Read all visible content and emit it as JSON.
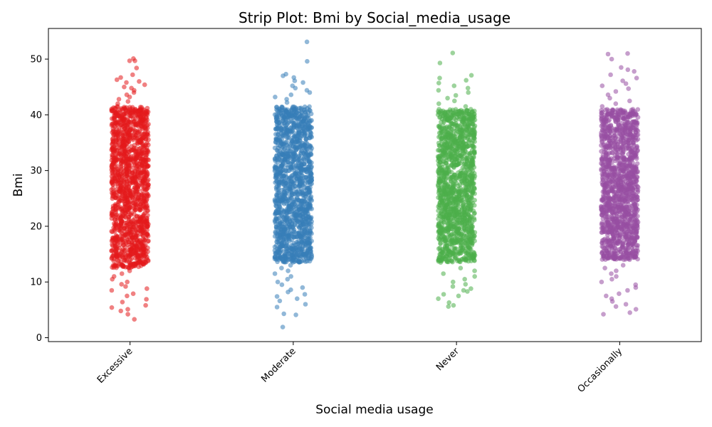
{
  "chart_data": {
    "type": "scatter",
    "subtype": "strip",
    "title": "Strip Plot: Bmi by Social_media_usage",
    "xlabel": "Social media usage",
    "ylabel": "Bmi",
    "categories": [
      "Excessive",
      "Moderate",
      "Never",
      "Occasionally"
    ],
    "colors": [
      "#e41a1c",
      "#377eb8",
      "#4daf4a",
      "#984ea3"
    ],
    "ylim": [
      -0.7,
      55.5
    ],
    "yticks": [
      0,
      10,
      20,
      30,
      40,
      50
    ],
    "grid": false,
    "legend": "none",
    "series": [
      {
        "category": "Excessive",
        "dense_range": [
          12.5,
          41.5
        ],
        "values": [
          50.1,
          49.7,
          49.7,
          48.4,
          47.2,
          46.7,
          46.3,
          46.0,
          45.8,
          45.4,
          45.0,
          44.8,
          44.4,
          44.0,
          43.6,
          43.2,
          42.8,
          42.4,
          42.0,
          41.0,
          38.0,
          35.0,
          32.0,
          29.0,
          26.0,
          23.0,
          20.0,
          17.0,
          14.0,
          12.0,
          11.5,
          11.0,
          10.5,
          10.0,
          9.6,
          9.2,
          8.8,
          8.5,
          7.9,
          7.5,
          6.9,
          6.4,
          5.8,
          5.4,
          5.1,
          4.8,
          4.2,
          3.3
        ]
      },
      {
        "category": "Moderate",
        "dense_range": [
          13.5,
          41.5
        ],
        "values": [
          53.1,
          49.6,
          47.3,
          47.0,
          46.7,
          46.1,
          45.8,
          45.2,
          44.8,
          44.4,
          44.0,
          43.6,
          43.2,
          42.8,
          42.2,
          41.0,
          38.0,
          35.0,
          32.0,
          29.0,
          26.0,
          23.0,
          20.0,
          17.0,
          14.5,
          13.0,
          12.5,
          12.0,
          11.5,
          11.0,
          10.5,
          10.0,
          9.5,
          9.0,
          8.6,
          8.2,
          7.8,
          7.4,
          7.0,
          6.6,
          6.0,
          5.5,
          4.3,
          4.1,
          1.9
        ]
      },
      {
        "category": "Never",
        "dense_range": [
          13.5,
          41.0
        ],
        "values": [
          51.1,
          49.3,
          47.1,
          46.6,
          46.2,
          45.7,
          45.2,
          44.8,
          44.4,
          44.0,
          43.5,
          43.0,
          42.5,
          42.0,
          41.5,
          38.0,
          35.0,
          32.0,
          29.0,
          26.0,
          23.0,
          20.0,
          17.0,
          14.0,
          12.5,
          12.0,
          11.5,
          11.0,
          10.5,
          10.0,
          9.6,
          9.2,
          8.8,
          8.5,
          8.3,
          7.8,
          7.5,
          7.0,
          6.3,
          5.8,
          5.6
        ]
      },
      {
        "category": "Occasionally",
        "dense_range": [
          14.0,
          41.0
        ],
        "values": [
          51.0,
          50.9,
          50.0,
          48.5,
          48.1,
          47.8,
          47.2,
          46.6,
          46.1,
          45.6,
          45.2,
          44.7,
          44.2,
          43.6,
          43.0,
          42.5,
          42.0,
          41.5,
          38.0,
          35.0,
          32.0,
          29.0,
          26.0,
          23.0,
          20.0,
          17.0,
          14.5,
          13.0,
          12.5,
          12.0,
          11.5,
          11.0,
          10.5,
          10.0,
          9.5,
          9.0,
          8.5,
          7.9,
          7.5,
          7.0,
          6.5,
          6.0,
          5.6,
          5.1,
          4.5,
          4.2
        ]
      }
    ]
  }
}
